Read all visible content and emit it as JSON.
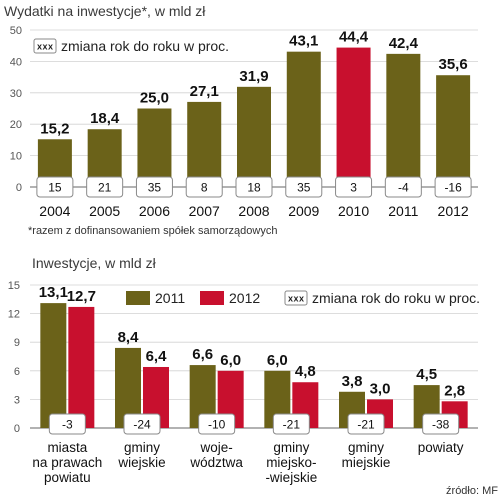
{
  "chart_data": [
    {
      "type": "bar",
      "title": "Wydatki na inwestycje*, w mld zł",
      "legend_label": "zmiana rok do roku w proc.",
      "legend_marker": "xxx",
      "categories": [
        "2004",
        "2005",
        "2006",
        "2007",
        "2008",
        "2009",
        "2010",
        "2011",
        "2012"
      ],
      "values": [
        15.2,
        18.4,
        25.0,
        27.1,
        31.9,
        43.1,
        44.4,
        42.4,
        35.6
      ],
      "value_labels": [
        "15,2",
        "18,4",
        "25,0",
        "27,1",
        "31,9",
        "43,1",
        "44,4",
        "42,4",
        "35,6"
      ],
      "yoy_change_pct": [
        "15",
        "21",
        "35",
        "8",
        "18",
        "35",
        "3",
        "-4",
        "-16"
      ],
      "highlight_category": "2010",
      "yticks": [
        "0",
        "10",
        "20",
        "30",
        "40",
        "50"
      ],
      "ylim": [
        0,
        50
      ],
      "footnote": "*razem z dofinansowaniem spółek samorządowych",
      "colors": {
        "bar": "#6b6219",
        "highlight": "#c8102e"
      }
    },
    {
      "type": "bar",
      "title": "Inwestycje, w mld zł",
      "legend_marker": "xxx",
      "legend_label": "zmiana rok do roku w proc.",
      "categories": [
        [
          "miasta",
          "na prawach",
          "powiatu"
        ],
        [
          "gminy",
          "wiejskie"
        ],
        [
          "woje-",
          "wództwa"
        ],
        [
          "gminy",
          "miejsko-",
          "-wiejskie"
        ],
        [
          "gminy",
          "miejskie"
        ],
        [
          "powiaty"
        ]
      ],
      "series": [
        {
          "name": "2011",
          "values": [
            13.1,
            8.4,
            6.6,
            6.0,
            3.8,
            4.5
          ],
          "labels": [
            "13,1",
            "8,4",
            "6,6",
            "6,0",
            "3,8",
            "4,5"
          ],
          "color": "#6b6219"
        },
        {
          "name": "2012",
          "values": [
            12.7,
            6.4,
            6.0,
            4.8,
            3.0,
            2.8
          ],
          "labels": [
            "12,7",
            "6,4",
            "6,0",
            "4,8",
            "3,0",
            "2,8"
          ],
          "color": "#c8102e"
        }
      ],
      "yoy_change_pct": [
        "-3",
        "-24",
        "-10",
        "-21",
        "-21",
        "-38"
      ],
      "yticks": [
        "0",
        "3",
        "6",
        "9",
        "12",
        "15"
      ],
      "ylim": [
        0,
        15
      ],
      "source": "źródło: MF"
    }
  ]
}
